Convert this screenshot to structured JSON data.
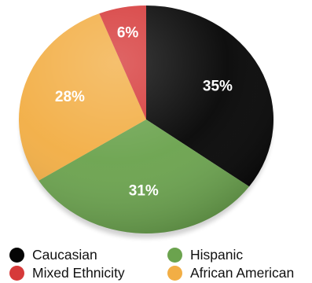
{
  "chart_data": {
    "type": "pie",
    "slices": [
      {
        "name": "Caucasian",
        "value": 35,
        "label": "35%",
        "color": "#050505"
      },
      {
        "name": "Hispanic",
        "value": 31,
        "label": "31%",
        "color": "#6ba34e"
      },
      {
        "name": "African American",
        "value": 28,
        "label": "28%",
        "color": "#f2ae45"
      },
      {
        "name": "Mixed Ethnicity",
        "value": 6,
        "label": "6%",
        "color": "#d63a3a"
      }
    ],
    "start": "12 o'clock",
    "direction": "clockwise",
    "legend_position": "bottom"
  },
  "legend": {
    "items": [
      {
        "label": "Caucasian",
        "color": "#050505"
      },
      {
        "label": "Mixed Ethnicity",
        "color": "#d63a3a"
      },
      {
        "label": "Hispanic",
        "color": "#6ba34e"
      },
      {
        "label": "African American",
        "color": "#f2ae45"
      }
    ]
  }
}
